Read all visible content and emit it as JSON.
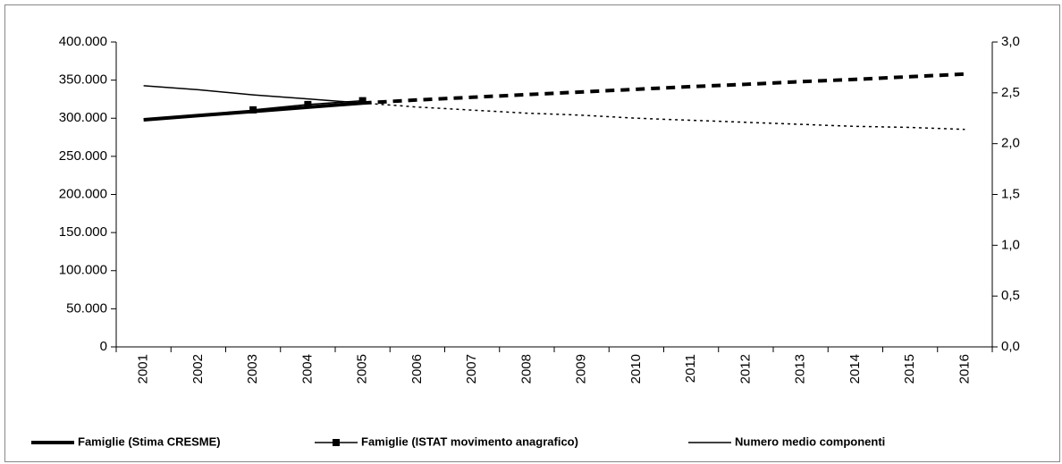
{
  "chart_data": {
    "type": "line",
    "categories": [
      "2001",
      "2002",
      "2003",
      "2004",
      "2005",
      "2006",
      "2007",
      "2008",
      "2009",
      "2010",
      "2011",
      "2012",
      "2013",
      "2014",
      "2015",
      "2016"
    ],
    "series": [
      {
        "name": "Famiglie (Stima CRESME)",
        "color": "#000000",
        "width": 4,
        "dashed_from": "2006",
        "values": [
          298000,
          303500,
          309000,
          314500,
          320000,
          324000,
          327500,
          331000,
          334500,
          338000,
          341500,
          344500,
          348000,
          351000,
          354500,
          358000
        ]
      },
      {
        "name": "Famiglie (ISTAT movimento anagrafico)",
        "color": "#000000",
        "width": 1.5,
        "marker": "square",
        "values": [
          null,
          null,
          311000,
          318000,
          323000,
          null,
          null,
          null,
          null,
          null,
          null,
          null,
          null,
          null,
          null,
          null
        ]
      },
      {
        "name": "Numero medio componenti",
        "color": "#000000",
        "width": 1.5,
        "dashed_from": "2006",
        "axis": "y2",
        "values": [
          2.57,
          2.53,
          2.48,
          2.44,
          2.4,
          2.36,
          2.33,
          2.3,
          2.28,
          2.25,
          2.23,
          2.21,
          2.19,
          2.17,
          2.16,
          2.14
        ]
      }
    ],
    "ylim": [
      0,
      400000
    ],
    "yticks": [
      {
        "value": 0,
        "label": "0"
      },
      {
        "value": 50000,
        "label": "50.000"
      },
      {
        "value": 100000,
        "label": "100.000"
      },
      {
        "value": 150000,
        "label": "150.000"
      },
      {
        "value": 200000,
        "label": "200.000"
      },
      {
        "value": 250000,
        "label": "250.000"
      },
      {
        "value": 300000,
        "label": "300.000"
      },
      {
        "value": 350000,
        "label": "350.000"
      },
      {
        "value": 400000,
        "label": "400.000"
      }
    ],
    "y2lim": [
      0,
      3
    ],
    "y2ticks": [
      {
        "value": 0,
        "label": "0,0"
      },
      {
        "value": 0.5,
        "label": "0,5"
      },
      {
        "value": 1,
        "label": "1,0"
      },
      {
        "value": 1.5,
        "label": "1,5"
      },
      {
        "value": 2,
        "label": "2,0"
      },
      {
        "value": 2.5,
        "label": "2,5"
      },
      {
        "value": 3,
        "label": "3,0"
      }
    ],
    "legend": "bottom"
  }
}
